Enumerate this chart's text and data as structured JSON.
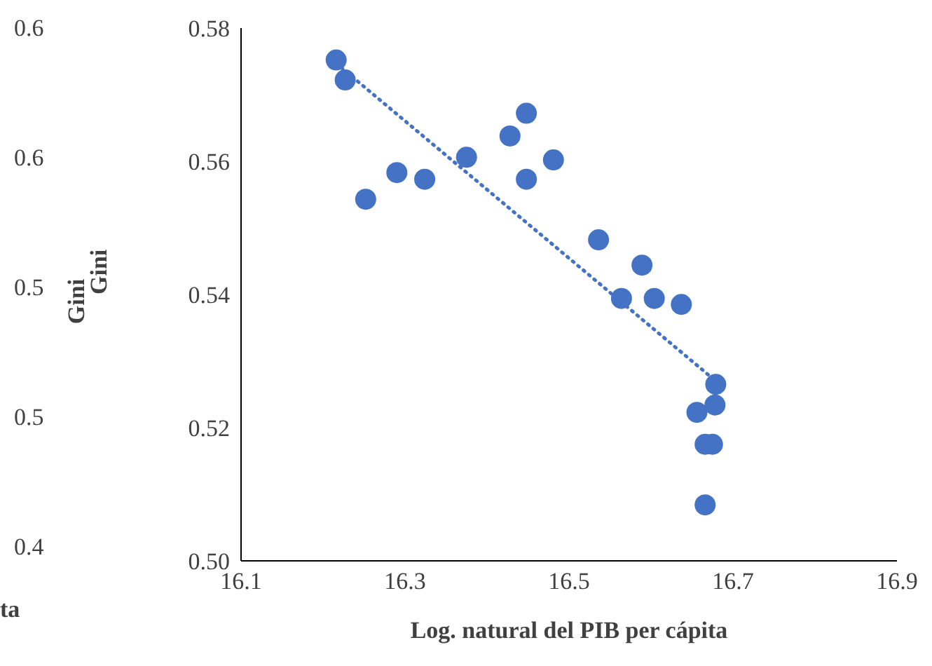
{
  "chart_data": [
    {
      "type": "other",
      "xlabel": "ta",
      "ylabel": "Gini",
      "annotations": [
        "0.6",
        "0.6",
        "0.5",
        "0.5",
        "0.4"
      ]
    },
    {
      "type": "scatter",
      "xlabel": "Log. natural del PIB per cápita",
      "ylabel": "Gini",
      "xlim": [
        16.1,
        16.9
      ],
      "xticks": [
        16.1,
        16.3,
        16.5,
        16.7,
        16.9
      ],
      "ylim": [
        0.5,
        0.58
      ],
      "yticks": [
        {
          "value": 0.5,
          "label": "0.50"
        },
        {
          "value": 0.52,
          "label": "0.52"
        },
        {
          "value": 0.54,
          "label": "0.54"
        },
        {
          "value": 0.56,
          "label": "0.56"
        },
        {
          "value": 0.58,
          "label": "0.58"
        }
      ],
      "series": [
        {
          "type": "scatter",
          "color": "#4472c4",
          "marker": "circle",
          "x": [
            16.216,
            16.227,
            16.252,
            16.29,
            16.324,
            16.375,
            16.428,
            16.448,
            16.448,
            16.481,
            16.536,
            16.564,
            16.589,
            16.604,
            16.637,
            16.679,
            16.656,
            16.678,
            16.666,
            16.675,
            16.666
          ],
          "values": [
            0.5752,
            0.5722,
            0.5543,
            0.5583,
            0.5573,
            0.5606,
            0.5638,
            0.5672,
            0.5573,
            0.5602,
            0.5482,
            0.5394,
            0.5444,
            0.5394,
            0.5385,
            0.5265,
            0.5223,
            0.5234,
            0.5175,
            0.5175,
            0.5084
          ]
        },
        {
          "type": "line",
          "color": "#4472c4",
          "line_style": "dotted",
          "x": [
            16.216,
            16.679
          ],
          "values": [
            0.5747,
            0.527
          ]
        }
      ]
    }
  ]
}
